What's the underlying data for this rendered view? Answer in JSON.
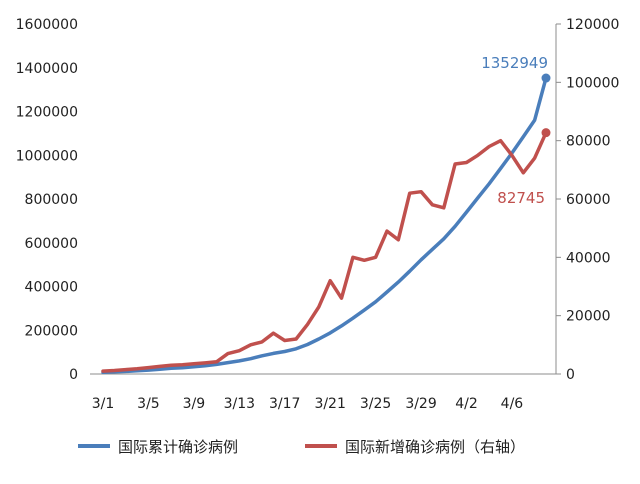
{
  "chart_data": {
    "type": "line",
    "categories": [
      "3/1",
      "3/2",
      "3/3",
      "3/4",
      "3/5",
      "3/6",
      "3/7",
      "3/8",
      "3/9",
      "3/10",
      "3/11",
      "3/12",
      "3/13",
      "3/14",
      "3/15",
      "3/16",
      "3/17",
      "3/18",
      "3/19",
      "3/20",
      "3/21",
      "3/22",
      "3/23",
      "3/24",
      "3/25",
      "3/26",
      "3/27",
      "3/28",
      "3/29",
      "3/30",
      "3/31",
      "4/1",
      "4/2",
      "4/3",
      "4/4",
      "4/5",
      "4/6",
      "4/7",
      "4/8",
      "4/9"
    ],
    "x_tick_labels": [
      "3/1",
      "3/5",
      "3/9",
      "3/13",
      "3/17",
      "3/21",
      "3/25",
      "3/29",
      "4/2",
      "4/6"
    ],
    "series": [
      {
        "name": "国际累计确诊病例",
        "axis": "left",
        "color": "#4a7ebb",
        "values": [
          8000,
          10000,
          12000,
          15000,
          18000,
          22000,
          26000,
          29000,
          33000,
          38000,
          44000,
          52000,
          60000,
          70000,
          83000,
          94000,
          103000,
          115000,
          135000,
          160000,
          188000,
          220000,
          255000,
          292000,
          330000,
          375000,
          420000,
          470000,
          522000,
          570000,
          618000,
          675000,
          740000,
          805000,
          870000,
          940000,
          1010000,
          1085000,
          1160000,
          1352949
        ],
        "end_label": "1352949"
      },
      {
        "name": "国际新增确诊病例（右轴）",
        "axis": "right",
        "color": "#c0504d",
        "values": [
          1000,
          1200,
          1500,
          1800,
          2200,
          2600,
          3000,
          3200,
          3500,
          3800,
          4200,
          7000,
          8000,
          10000,
          11000,
          14000,
          11500,
          12000,
          17000,
          23000,
          32000,
          26000,
          40000,
          39000,
          40000,
          49000,
          46000,
          62000,
          62500,
          58000,
          57000,
          72000,
          72500,
          75000,
          78000,
          80000,
          75000,
          69000,
          74000,
          82745
        ],
        "end_label": "82745"
      }
    ],
    "left_axis": {
      "ylim": [
        0,
        1600000
      ],
      "ticks": [
        "0",
        "200000",
        "400000",
        "600000",
        "800000",
        "1000000",
        "1200000",
        "1400000",
        "1600000"
      ]
    },
    "right_axis": {
      "ylim": [
        0,
        120000
      ],
      "ticks": [
        "0",
        "20000",
        "40000",
        "60000",
        "80000",
        "100000",
        "120000"
      ]
    },
    "grid": false,
    "legend_position": "bottom",
    "title": "",
    "xlabel": "",
    "ylabel": ""
  },
  "legend": [
    {
      "label": "国际累计确诊病例",
      "color": "#4a7ebb"
    },
    {
      "label": "国际新增确诊病例（右轴）",
      "color": "#c0504d"
    }
  ]
}
